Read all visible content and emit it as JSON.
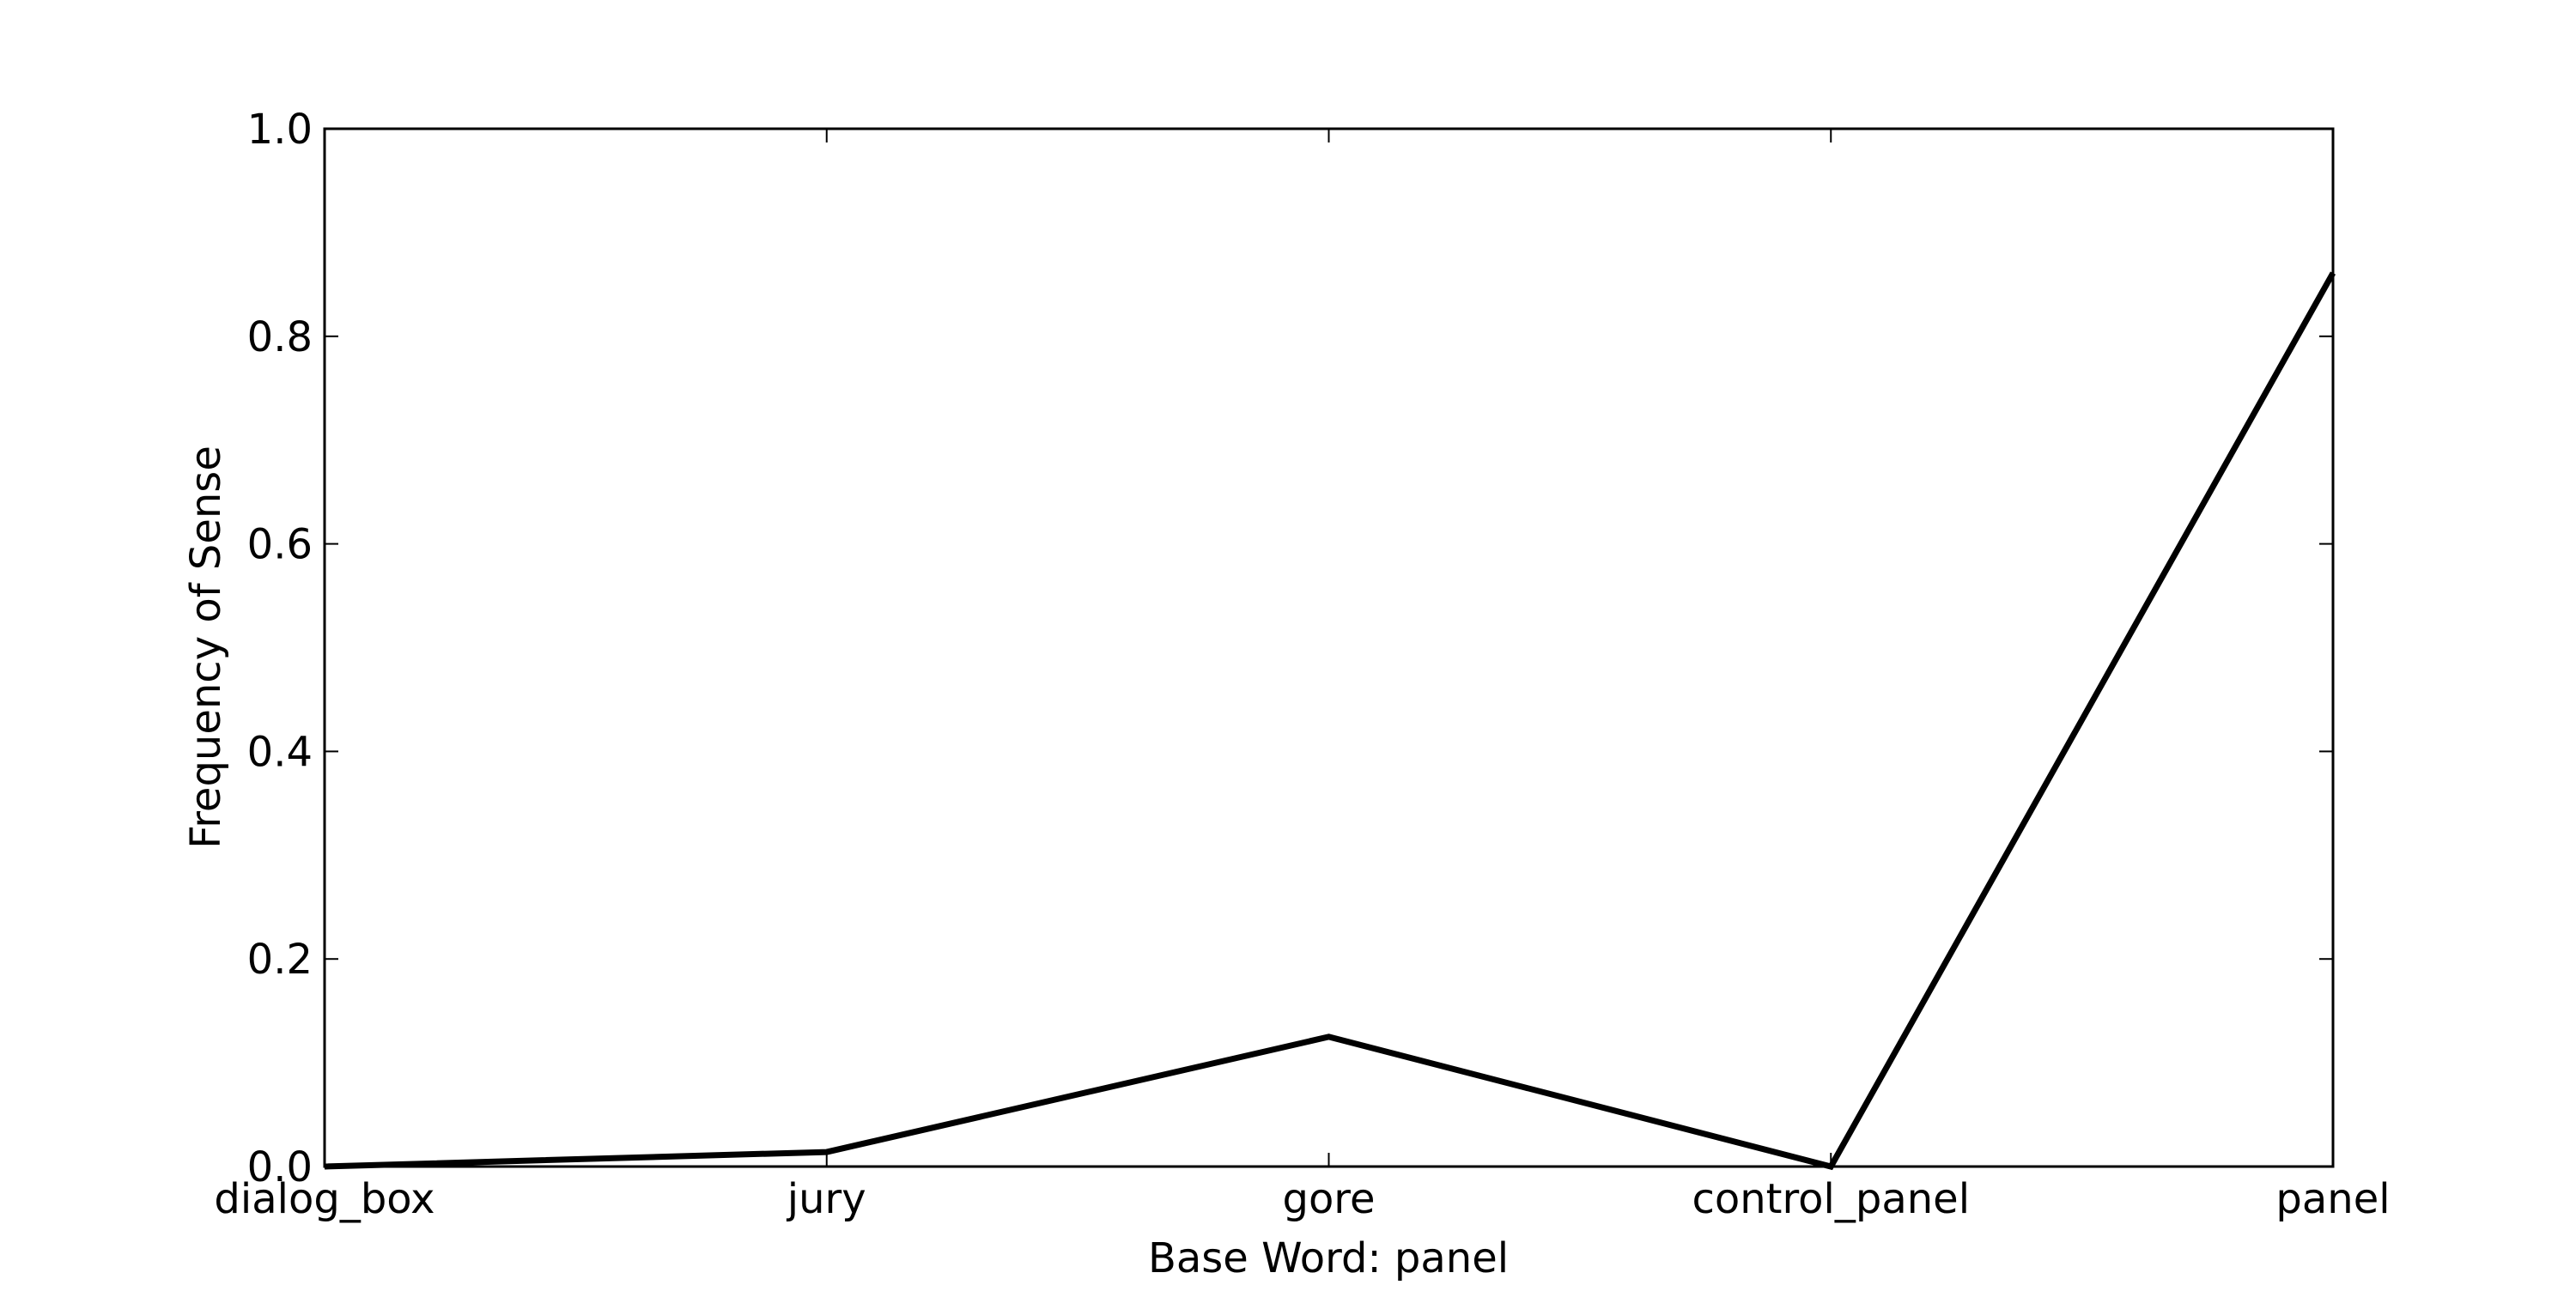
{
  "chart_data": {
    "type": "line",
    "categories": [
      "dialog_box",
      "jury",
      "gore",
      "control_panel",
      "panel"
    ],
    "values": [
      0.0,
      0.014,
      0.125,
      0.0,
      0.861
    ],
    "xlabel": "Base Word: panel",
    "ylabel": "Frequency of Sense",
    "ylim": [
      0.0,
      1.0
    ],
    "yticks": [
      "0.0",
      "0.2",
      "0.4",
      "0.6",
      "0.8",
      "1.0"
    ],
    "grid": false,
    "line_color": "#000000"
  }
}
